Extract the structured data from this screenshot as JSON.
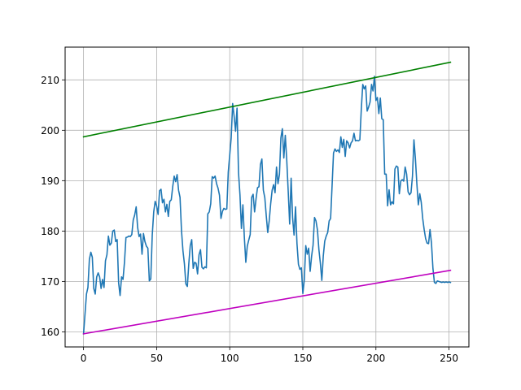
{
  "chart_data": {
    "type": "line",
    "title": "",
    "xlabel": "",
    "ylabel": "",
    "xlim": [
      -12.6,
      263.6
    ],
    "ylim": [
      157,
      216.5
    ],
    "grid": true,
    "x_ticks": [
      0,
      50,
      100,
      150,
      200,
      250
    ],
    "y_ticks": [
      160,
      170,
      180,
      190,
      200,
      210
    ],
    "series": [
      {
        "color": "#1f77b4",
        "points": [
          [
            0,
            159.6
          ],
          [
            1,
            163.5
          ],
          [
            2,
            167.5
          ],
          [
            3,
            168.8
          ],
          [
            4,
            174.4
          ],
          [
            5,
            175.8
          ],
          [
            6,
            174.8
          ],
          [
            7,
            168.6
          ],
          [
            8,
            167.5
          ],
          [
            9,
            170.9
          ],
          [
            10,
            171.7
          ],
          [
            11,
            170.9
          ],
          [
            12,
            168.6
          ],
          [
            13,
            170.4
          ],
          [
            14,
            168.8
          ],
          [
            15,
            174.1
          ],
          [
            16,
            175.3
          ],
          [
            17,
            179.0
          ],
          [
            18,
            177.2
          ],
          [
            19,
            177.6
          ],
          [
            20,
            180.0
          ],
          [
            21,
            180.2
          ],
          [
            22,
            177.9
          ],
          [
            23,
            178.3
          ],
          [
            24,
            169.7
          ],
          [
            25,
            167.2
          ],
          [
            26,
            170.9
          ],
          [
            27,
            170.4
          ],
          [
            28,
            173.8
          ],
          [
            29,
            178.7
          ],
          [
            30,
            178.8
          ],
          [
            31,
            179.0
          ],
          [
            32,
            178.9
          ],
          [
            33,
            179.3
          ],
          [
            34,
            182.2
          ],
          [
            35,
            183.2
          ],
          [
            36,
            184.8
          ],
          [
            37,
            180.7
          ],
          [
            38,
            178.9
          ],
          [
            39,
            179.4
          ],
          [
            40,
            175.4
          ],
          [
            41,
            179.5
          ],
          [
            42,
            177.9
          ],
          [
            43,
            177.0
          ],
          [
            44,
            176.6
          ],
          [
            45,
            170.1
          ],
          [
            46,
            170.5
          ],
          [
            47,
            179.2
          ],
          [
            48,
            183.8
          ],
          [
            49,
            185.9
          ],
          [
            50,
            185.0
          ],
          [
            51,
            183.3
          ],
          [
            52,
            188.0
          ],
          [
            53,
            188.3
          ],
          [
            54,
            185.6
          ],
          [
            55,
            186.3
          ],
          [
            56,
            183.8
          ],
          [
            57,
            185.3
          ],
          [
            58,
            182.9
          ],
          [
            59,
            185.9
          ],
          [
            60,
            186.2
          ],
          [
            61,
            188.8
          ],
          [
            62,
            190.9
          ],
          [
            63,
            189.8
          ],
          [
            64,
            191.2
          ],
          [
            65,
            188.1
          ],
          [
            66,
            186.7
          ],
          [
            67,
            180.1
          ],
          [
            68,
            176.1
          ],
          [
            69,
            173.5
          ],
          [
            70,
            169.5
          ],
          [
            71,
            169.0
          ],
          [
            72,
            173.5
          ],
          [
            73,
            177.1
          ],
          [
            74,
            178.3
          ],
          [
            75,
            172.6
          ],
          [
            76,
            173.8
          ],
          [
            77,
            173.6
          ],
          [
            78,
            171.5
          ],
          [
            79,
            175.3
          ],
          [
            80,
            176.3
          ],
          [
            81,
            172.8
          ],
          [
            82,
            172.5
          ],
          [
            83,
            172.9
          ],
          [
            84,
            172.7
          ],
          [
            85,
            183.4
          ],
          [
            86,
            183.8
          ],
          [
            87,
            185.4
          ],
          [
            88,
            190.8
          ],
          [
            89,
            190.5
          ],
          [
            90,
            190.9
          ],
          [
            91,
            189.4
          ],
          [
            92,
            188.5
          ],
          [
            93,
            187.1
          ],
          [
            94,
            182.5
          ],
          [
            95,
            183.9
          ],
          [
            96,
            184.5
          ],
          [
            97,
            184.3
          ],
          [
            98,
            184.4
          ],
          [
            99,
            191.7
          ],
          [
            100,
            195.1
          ],
          [
            101,
            198.5
          ],
          [
            102,
            205.3
          ],
          [
            103,
            202.8
          ],
          [
            104,
            199.8
          ],
          [
            105,
            204.4
          ],
          [
            106,
            191.6
          ],
          [
            107,
            187.2
          ],
          [
            108,
            180.5
          ],
          [
            109,
            185.2
          ],
          [
            110,
            178.7
          ],
          [
            111,
            173.8
          ],
          [
            112,
            177.0
          ],
          [
            113,
            178.2
          ],
          [
            114,
            179.3
          ],
          [
            115,
            186.7
          ],
          [
            116,
            187.3
          ],
          [
            117,
            183.8
          ],
          [
            118,
            186.4
          ],
          [
            119,
            188.6
          ],
          [
            120,
            188.8
          ],
          [
            121,
            193.2
          ],
          [
            122,
            194.3
          ],
          [
            123,
            188.1
          ],
          [
            124,
            186.6
          ],
          [
            125,
            183.0
          ],
          [
            126,
            179.7
          ],
          [
            127,
            182.0
          ],
          [
            128,
            185.4
          ],
          [
            129,
            188.1
          ],
          [
            130,
            189.2
          ],
          [
            131,
            187.6
          ],
          [
            132,
            192.7
          ],
          [
            133,
            189.4
          ],
          [
            134,
            191.2
          ],
          [
            135,
            198.5
          ],
          [
            136,
            200.3
          ],
          [
            137,
            194.5
          ],
          [
            138,
            199.0
          ],
          [
            139,
            194.1
          ],
          [
            140,
            187.9
          ],
          [
            141,
            181.4
          ],
          [
            142,
            190.5
          ],
          [
            143,
            182.6
          ],
          [
            144,
            179.2
          ],
          [
            145,
            184.8
          ],
          [
            146,
            177.5
          ],
          [
            147,
            173.4
          ],
          [
            148,
            172.4
          ],
          [
            149,
            172.7
          ],
          [
            150,
            167.6
          ],
          [
            151,
            170.3
          ],
          [
            152,
            177.1
          ],
          [
            153,
            175.4
          ],
          [
            154,
            176.6
          ],
          [
            155,
            172.0
          ],
          [
            156,
            175.0
          ],
          [
            157,
            177.2
          ],
          [
            158,
            182.7
          ],
          [
            159,
            182.0
          ],
          [
            160,
            180.2
          ],
          [
            161,
            176.3
          ],
          [
            162,
            173.6
          ],
          [
            163,
            170.2
          ],
          [
            164,
            175.1
          ],
          [
            165,
            178.0
          ],
          [
            166,
            179.0
          ],
          [
            167,
            179.7
          ],
          [
            168,
            182.0
          ],
          [
            169,
            182.5
          ],
          [
            170,
            188.9
          ],
          [
            171,
            195.5
          ],
          [
            172,
            196.3
          ],
          [
            173,
            195.8
          ],
          [
            174,
            196.1
          ],
          [
            175,
            195.6
          ],
          [
            176,
            198.7
          ],
          [
            177,
            196.6
          ],
          [
            178,
            198.2
          ],
          [
            179,
            194.8
          ],
          [
            180,
            197.9
          ],
          [
            181,
            197.5
          ],
          [
            182,
            196.5
          ],
          [
            183,
            197.5
          ],
          [
            184,
            197.9
          ],
          [
            185,
            199.4
          ],
          [
            186,
            197.9
          ],
          [
            187,
            198.0
          ],
          [
            188,
            197.9
          ],
          [
            189,
            198.1
          ],
          [
            190,
            204.2
          ],
          [
            191,
            209.1
          ],
          [
            192,
            208.2
          ],
          [
            193,
            208.8
          ],
          [
            194,
            203.8
          ],
          [
            195,
            204.6
          ],
          [
            196,
            205.6
          ],
          [
            197,
            209.1
          ],
          [
            198,
            207.8
          ],
          [
            199,
            210.7
          ],
          [
            200,
            205.9
          ],
          [
            201,
            206.5
          ],
          [
            202,
            203.3
          ],
          [
            203,
            206.4
          ],
          [
            204,
            202.3
          ],
          [
            205,
            202.1
          ],
          [
            206,
            191.3
          ],
          [
            207,
            191.3
          ],
          [
            208,
            185.0
          ],
          [
            209,
            188.2
          ],
          [
            210,
            185.2
          ],
          [
            211,
            185.8
          ],
          [
            212,
            185.4
          ],
          [
            213,
            192.3
          ],
          [
            214,
            192.9
          ],
          [
            215,
            192.7
          ],
          [
            216,
            187.4
          ],
          [
            217,
            189.9
          ],
          [
            218,
            190.2
          ],
          [
            219,
            189.9
          ],
          [
            220,
            192.7
          ],
          [
            221,
            191.3
          ],
          [
            222,
            187.8
          ],
          [
            223,
            187.2
          ],
          [
            224,
            187.6
          ],
          [
            225,
            190.9
          ],
          [
            226,
            198.1
          ],
          [
            227,
            194.4
          ],
          [
            228,
            189.4
          ],
          [
            229,
            185.2
          ],
          [
            230,
            187.4
          ],
          [
            231,
            185.7
          ],
          [
            232,
            182.5
          ],
          [
            233,
            180.3
          ],
          [
            234,
            178.5
          ],
          [
            235,
            177.6
          ],
          [
            236,
            177.5
          ],
          [
            237,
            180.3
          ],
          [
            238,
            177.6
          ],
          [
            239,
            172.6
          ],
          [
            240,
            169.8
          ],
          [
            241,
            169.6
          ],
          [
            242,
            170.1
          ],
          [
            243,
            170.0
          ],
          [
            244,
            169.9
          ],
          [
            245,
            169.8
          ],
          [
            246,
            169.9
          ],
          [
            247,
            169.8
          ],
          [
            248,
            169.9
          ],
          [
            249,
            169.8
          ],
          [
            250,
            169.9
          ],
          [
            251,
            169.8
          ]
        ]
      },
      {
        "color": "#008000",
        "points": [
          [
            0,
            198.7
          ],
          [
            251,
            213.5
          ]
        ]
      },
      {
        "color": "#bf00bf",
        "points": [
          [
            0,
            159.6
          ],
          [
            251,
            172.2
          ]
        ]
      }
    ]
  }
}
